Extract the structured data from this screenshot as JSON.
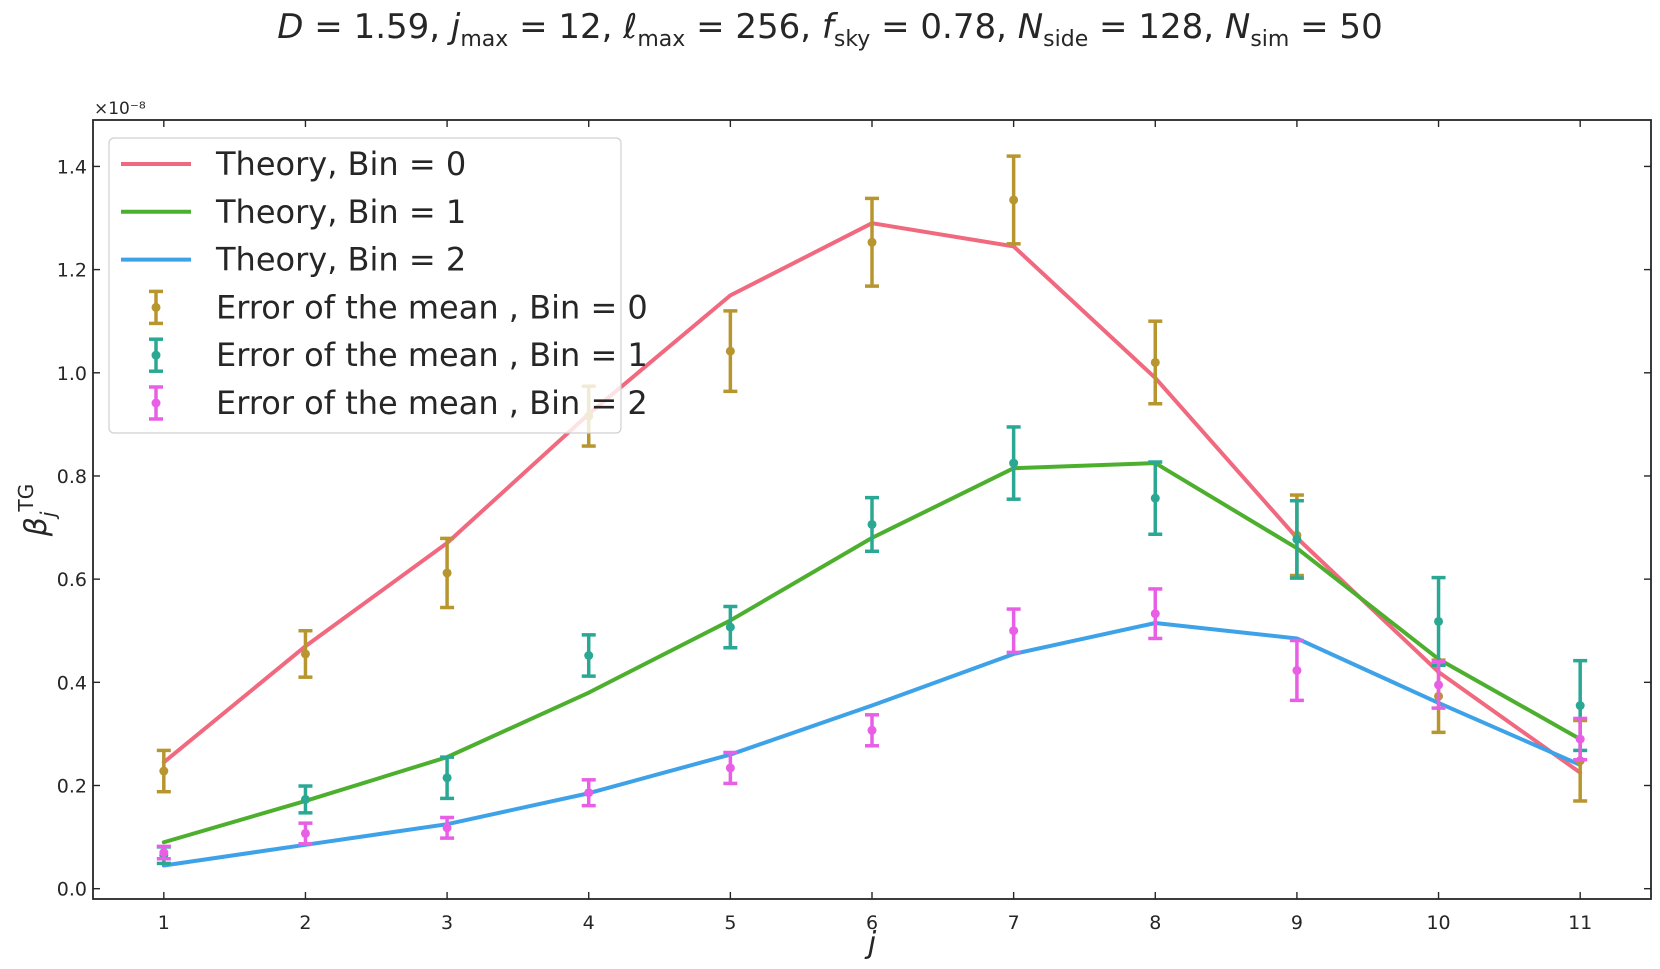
{
  "chart_data": {
    "type": "line",
    "title": "D = 1.59,  j_max = 12,  ℓ_max = 256, f_sky = 0.78,  N_side = 128, N_sim = 50",
    "xlabel": "j",
    "ylabel": "β_j^TG",
    "y_multiplier": "×10⁻⁸",
    "xlim": [
      0.5,
      11.5
    ],
    "ylim": [
      -0.02,
      1.49
    ],
    "x_ticks": [
      1,
      2,
      3,
      4,
      5,
      6,
      7,
      8,
      9,
      10,
      11
    ],
    "y_ticks": [
      0.0,
      0.2,
      0.4,
      0.6,
      0.8,
      1.0,
      1.2,
      1.4
    ],
    "y_tick_labels": [
      "0.0",
      "0.2",
      "0.4",
      "0.6",
      "0.8",
      "1.0",
      "1.2",
      "1.4"
    ],
    "grid": false,
    "legend_position": "top-left",
    "x": [
      1,
      2,
      3,
      4,
      5,
      6,
      7,
      8,
      9,
      10,
      11
    ],
    "series": [
      {
        "name": "Theory, Bin = 0",
        "kind": "line",
        "color": "#f0697f",
        "values": [
          0.245,
          0.47,
          0.67,
          0.92,
          1.15,
          1.29,
          1.245,
          0.99,
          0.68,
          0.42,
          0.225
        ]
      },
      {
        "name": "Theory, Bin = 1",
        "kind": "line",
        "color": "#4daf2e",
        "values": [
          0.09,
          0.17,
          0.255,
          0.38,
          0.52,
          0.68,
          0.815,
          0.825,
          0.66,
          0.445,
          0.29
        ]
      },
      {
        "name": "Theory, Bin = 2",
        "kind": "line",
        "color": "#3ea2e8",
        "values": [
          0.045,
          0.085,
          0.125,
          0.185,
          0.26,
          0.355,
          0.455,
          0.515,
          0.485,
          0.36,
          0.24
        ]
      },
      {
        "name": "Error of the mean , Bin = 0",
        "kind": "errorbar",
        "color": "#b8962f",
        "values": [
          0.228,
          0.455,
          0.612,
          0.916,
          1.042,
          1.253,
          1.335,
          1.02,
          0.685,
          0.373,
          0.248
        ],
        "errors": [
          0.04,
          0.045,
          0.067,
          0.058,
          0.078,
          0.085,
          0.085,
          0.08,
          0.078,
          0.07,
          0.078
        ]
      },
      {
        "name": "Error of the mean , Bin = 1",
        "kind": "errorbar",
        "color": "#2aa893",
        "values": [
          0.065,
          0.173,
          0.215,
          0.452,
          0.507,
          0.706,
          0.825,
          0.757,
          0.677,
          0.518,
          0.355
        ],
        "errors": [
          0.016,
          0.026,
          0.04,
          0.04,
          0.04,
          0.052,
          0.07,
          0.07,
          0.075,
          0.085,
          0.087
        ]
      },
      {
        "name": "Error of the mean , Bin = 2",
        "kind": "errorbar",
        "color": "#e85fe6",
        "values": [
          0.07,
          0.107,
          0.118,
          0.186,
          0.234,
          0.307,
          0.5,
          0.533,
          0.423,
          0.395,
          0.29
        ],
        "errors": [
          0.012,
          0.02,
          0.02,
          0.025,
          0.03,
          0.03,
          0.042,
          0.048,
          0.058,
          0.045,
          0.04
        ]
      }
    ]
  }
}
